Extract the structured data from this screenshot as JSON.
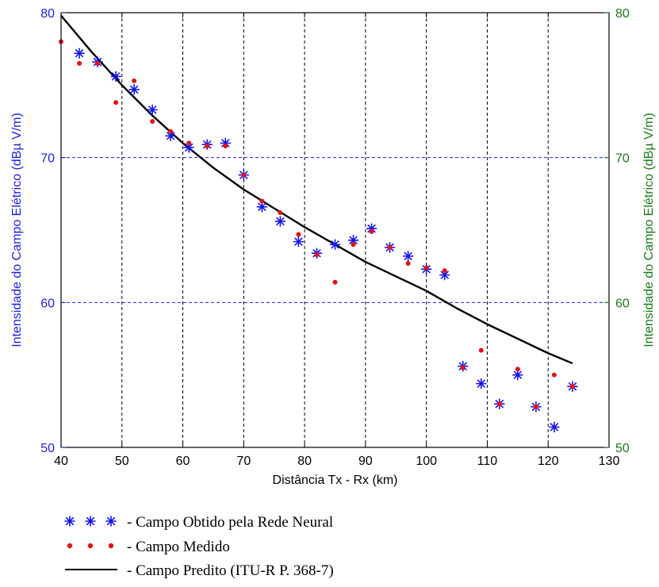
{
  "chart_data": {
    "type": "scatter",
    "xlabel": "Distância Tx - Rx (km)",
    "ylabel_left": "Intensidade do Campo Elétrico (dBµ V/m)",
    "ylabel_right": "Intensidade do Campo Elétrico (dBµ V/m)",
    "xlim": [
      40,
      130
    ],
    "ylim": [
      50,
      80
    ],
    "x_ticks": [
      40,
      50,
      60,
      70,
      80,
      90,
      100,
      110,
      120,
      130
    ],
    "y_ticks": [
      50,
      60,
      70,
      80
    ],
    "grid": {
      "x": "black dashed",
      "y": "blue dashed"
    },
    "legend_placement": "below",
    "colors": {
      "neural": "#1414e6",
      "measured": "#e01414",
      "predicted": "#000000",
      "left_axis": "#1f1fd6",
      "right_axis": "#1a7a1a"
    },
    "series": [
      {
        "name": "Campo Obtido pela Rede Neural",
        "marker": "star",
        "points": [
          [
            43,
            77.2
          ],
          [
            46,
            76.6
          ],
          [
            49,
            75.6
          ],
          [
            52,
            74.7
          ],
          [
            55,
            73.3
          ],
          [
            58,
            71.5
          ],
          [
            61,
            70.7
          ],
          [
            64,
            70.9
          ],
          [
            67,
            71.0
          ],
          [
            70,
            68.8
          ],
          [
            73,
            66.6
          ],
          [
            76,
            65.6
          ],
          [
            79,
            64.2
          ],
          [
            82,
            63.4
          ],
          [
            85,
            64.0
          ],
          [
            88,
            64.3
          ],
          [
            91,
            65.1
          ],
          [
            94,
            63.8
          ],
          [
            97,
            63.2
          ],
          [
            100,
            62.3
          ],
          [
            103,
            61.9
          ],
          [
            106,
            55.6
          ],
          [
            109,
            54.4
          ],
          [
            112,
            53.0
          ],
          [
            115,
            55.0
          ],
          [
            118,
            52.8
          ],
          [
            121,
            51.4
          ],
          [
            124,
            54.2
          ]
        ]
      },
      {
        "name": "Campo Medido",
        "marker": "dot",
        "points": [
          [
            40,
            78.0
          ],
          [
            43,
            76.5
          ],
          [
            46,
            76.5
          ],
          [
            49,
            73.8
          ],
          [
            52,
            75.3
          ],
          [
            55,
            72.5
          ],
          [
            58,
            71.8
          ],
          [
            61,
            71.0
          ],
          [
            64,
            70.8
          ],
          [
            67,
            70.8
          ],
          [
            70,
            68.8
          ],
          [
            73,
            67.0
          ],
          [
            76,
            66.2
          ],
          [
            79,
            64.7
          ],
          [
            82,
            63.3
          ],
          [
            85,
            61.4
          ],
          [
            88,
            64.0
          ],
          [
            91,
            64.9
          ],
          [
            94,
            63.8
          ],
          [
            97,
            62.7
          ],
          [
            100,
            62.4
          ],
          [
            103,
            62.2
          ],
          [
            106,
            55.5
          ],
          [
            109,
            56.7
          ],
          [
            112,
            53.0
          ],
          [
            115,
            55.4
          ],
          [
            118,
            52.8
          ],
          [
            121,
            55.0
          ],
          [
            124,
            54.2
          ]
        ]
      },
      {
        "name": "Campo Predito (ITU-R P. 368-7)",
        "marker": "line",
        "points": [
          [
            40,
            79.8
          ],
          [
            45,
            77.3
          ],
          [
            50,
            75.0
          ],
          [
            55,
            72.9
          ],
          [
            60,
            71.0
          ],
          [
            65,
            69.3
          ],
          [
            70,
            67.8
          ],
          [
            75,
            66.5
          ],
          [
            80,
            65.2
          ],
          [
            85,
            64.0
          ],
          [
            90,
            62.8
          ],
          [
            95,
            61.8
          ],
          [
            100,
            60.8
          ],
          [
            105,
            59.6
          ],
          [
            110,
            58.5
          ],
          [
            115,
            57.5
          ],
          [
            120,
            56.5
          ],
          [
            124,
            55.8
          ]
        ]
      }
    ]
  },
  "legend": {
    "items": [
      {
        "symbol": "* * *",
        "text": "- Campo Obtido pela Rede Neural"
      },
      {
        "symbol": "• • •",
        "text": "- Campo Medido"
      },
      {
        "symbol": "line",
        "text": "- Campo Predito (ITU-R P. 368-7)"
      }
    ]
  }
}
